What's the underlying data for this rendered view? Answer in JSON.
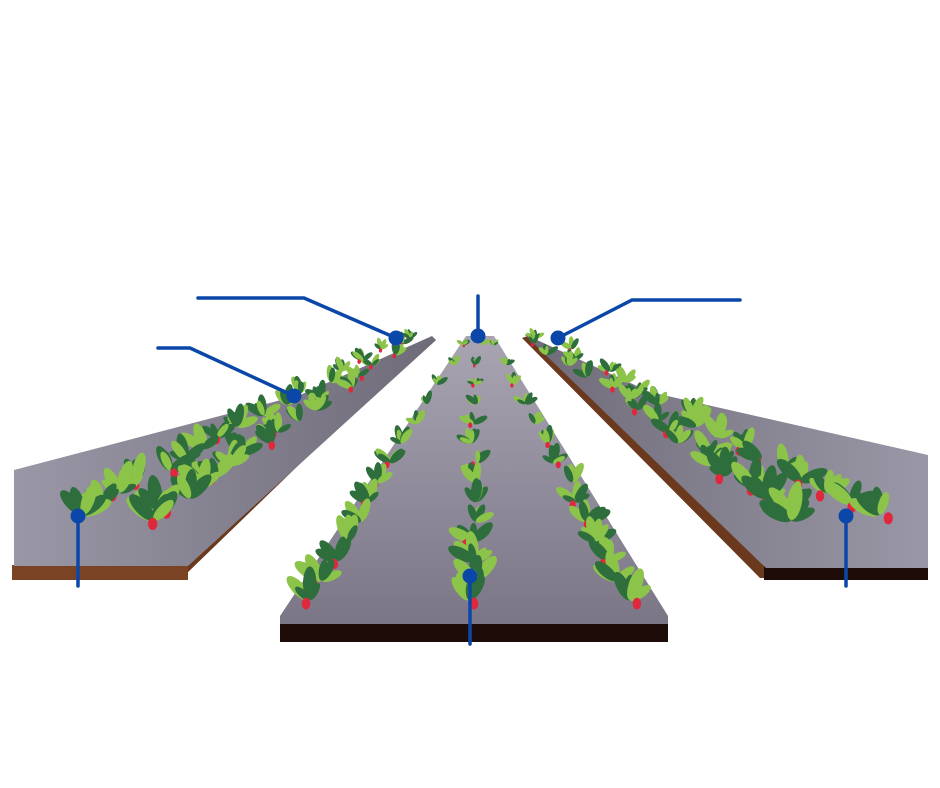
{
  "diagram": {
    "subject": "strawberry-beds",
    "beds": [
      {
        "id": "left",
        "plants": 34
      },
      {
        "id": "center",
        "plants": 42
      },
      {
        "id": "right",
        "plants": 34
      }
    ],
    "callouts": [
      {
        "id": "left-far",
        "label": ""
      },
      {
        "id": "left-mid",
        "label": ""
      },
      {
        "id": "left-near",
        "label": ""
      },
      {
        "id": "center-far",
        "label": ""
      },
      {
        "id": "center-near",
        "label": ""
      },
      {
        "id": "right-far",
        "label": ""
      },
      {
        "id": "right-near",
        "label": ""
      }
    ],
    "colors": {
      "leader": "#0a47a8",
      "leaf_dark": "#2e6e3c",
      "leaf_light": "#8cc44a",
      "berry": "#e0283c",
      "mulch": "#8b8795",
      "soil": "#6b3a1e",
      "soil_dark": "#1e0c08"
    }
  }
}
